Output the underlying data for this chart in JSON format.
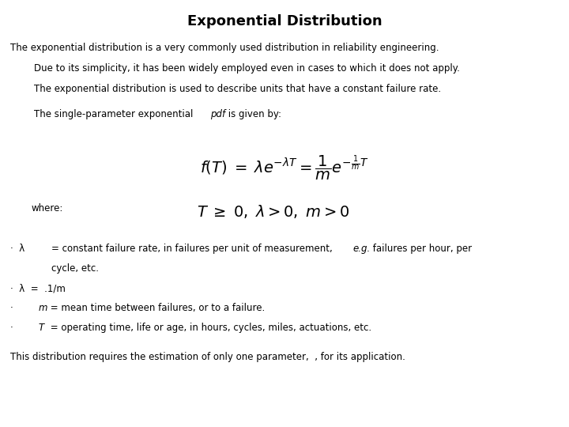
{
  "title": "Exponential Distribution",
  "title_fontsize": 13,
  "bg_color": "#ffffff",
  "text_color": "#000000",
  "fig_width": 7.2,
  "fig_height": 5.4,
  "dpi": 100,
  "para1_line1": "The exponential distribution is a very commonly used distribution in reliability engineering.",
  "para1_line2": "Due to its simplicity, it has been widely employed even in cases to which it does not apply.",
  "para1_line3": "The exponential distribution is used to describe units that have a constant failure rate.",
  "where_label": "where:",
  "conclusion": "This distribution requires the estimation of only one parameter,  , for its application.",
  "body_fontsize": 8.5,
  "formula_fontsize": 14
}
